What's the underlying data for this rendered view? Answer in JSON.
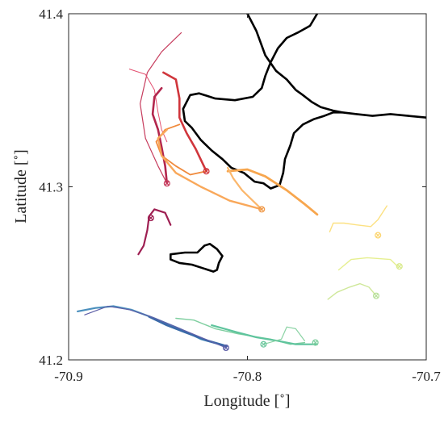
{
  "chart_data": {
    "type": "line",
    "title": "",
    "xlabel": "Longitude [˚]",
    "ylabel": "Latitude [˚]",
    "xlim": [
      -70.9,
      -70.7
    ],
    "ylim": [
      41.2,
      41.4
    ],
    "xticks": [
      -70.9,
      -70.8,
      -70.7
    ],
    "yticks": [
      41.2,
      41.3,
      41.4
    ],
    "xtick_labels": [
      "-70.9",
      "-70.8",
      "-70.7"
    ],
    "ytick_labels": [
      "41.2",
      "41.3",
      "41.4"
    ],
    "grid": false,
    "legend": "none",
    "coastlines": [
      {
        "color": "#000000",
        "points": [
          [
            -70.8,
            41.4
          ],
          [
            -70.795,
            41.39
          ],
          [
            -70.79,
            41.376
          ],
          [
            -70.784,
            41.367
          ],
          [
            -70.778,
            41.362
          ],
          [
            -70.773,
            41.356
          ],
          [
            -70.769,
            41.353
          ],
          [
            -70.764,
            41.349
          ],
          [
            -70.759,
            41.346
          ],
          [
            -70.752,
            41.344
          ],
          [
            -70.747,
            41.343
          ],
          [
            -70.739,
            41.342
          ],
          [
            -70.73,
            41.341
          ],
          [
            -70.72,
            41.342
          ],
          [
            -70.71,
            41.341
          ],
          [
            -70.7,
            41.34
          ]
        ]
      },
      {
        "color": "#000000",
        "points": [
          [
            -70.761,
            41.4
          ],
          [
            -70.765,
            41.393
          ],
          [
            -70.772,
            41.389
          ],
          [
            -70.778,
            41.386
          ],
          [
            -70.783,
            41.38
          ],
          [
            -70.787,
            41.372
          ],
          [
            -70.79,
            41.364
          ],
          [
            -70.792,
            41.357
          ],
          [
            -70.797,
            41.352
          ],
          [
            -70.807,
            41.35
          ],
          [
            -70.818,
            41.351
          ],
          [
            -70.827,
            41.354
          ],
          [
            -70.832,
            41.353
          ],
          [
            -70.836,
            41.345
          ],
          [
            -70.835,
            41.338
          ],
          [
            -70.831,
            41.334
          ],
          [
            -70.826,
            41.327
          ],
          [
            -70.82,
            41.321
          ],
          [
            -70.814,
            41.316
          ],
          [
            -70.809,
            41.311
          ],
          [
            -70.802,
            41.308
          ],
          [
            -70.796,
            41.303
          ],
          [
            -70.791,
            41.302
          ],
          [
            -70.787,
            41.299
          ],
          [
            -70.782,
            41.301
          ],
          [
            -70.78,
            41.308
          ],
          [
            -70.779,
            41.316
          ],
          [
            -70.776,
            41.324
          ],
          [
            -70.774,
            41.331
          ],
          [
            -70.769,
            41.336
          ],
          [
            -70.763,
            41.339
          ],
          [
            -70.757,
            41.341
          ],
          [
            -70.752,
            41.343
          ],
          [
            -70.747,
            41.343
          ]
        ]
      },
      {
        "color": "#000000",
        "points": [
          [
            -70.843,
            41.261
          ],
          [
            -70.835,
            41.262
          ],
          [
            -70.828,
            41.262
          ],
          [
            -70.824,
            41.266
          ],
          [
            -70.821,
            41.267
          ],
          [
            -70.817,
            41.264
          ],
          [
            -70.814,
            41.26
          ],
          [
            -70.816,
            41.256
          ],
          [
            -70.817,
            41.252
          ],
          [
            -70.819,
            41.251
          ],
          [
            -70.825,
            41.253
          ],
          [
            -70.831,
            41.255
          ],
          [
            -70.838,
            41.256
          ],
          [
            -70.843,
            41.258
          ],
          [
            -70.843,
            41.261
          ]
        ]
      }
    ],
    "series": [
      {
        "color": "#c73d5e",
        "width": 1.2,
        "points": [
          [
            -70.837,
            41.389
          ],
          [
            -70.848,
            41.378
          ],
          [
            -70.856,
            41.366
          ],
          [
            -70.86,
            41.348
          ],
          [
            -70.857,
            41.328
          ],
          [
            -70.85,
            41.312
          ],
          [
            -70.845,
            41.302
          ]
        ]
      },
      {
        "color": "#e34f6f",
        "width": 1.0,
        "points": [
          [
            -70.866,
            41.368
          ],
          [
            -70.857,
            41.365
          ],
          [
            -70.852,
            41.356
          ],
          [
            -70.85,
            41.343
          ],
          [
            -70.848,
            41.333
          ],
          [
            -70.845,
            41.326
          ]
        ]
      },
      {
        "color": "#b3264d",
        "width": 2.6,
        "points": [
          [
            -70.848,
            41.357
          ],
          [
            -70.852,
            41.352
          ],
          [
            -70.853,
            41.342
          ],
          [
            -70.85,
            41.333
          ],
          [
            -70.848,
            41.323
          ],
          [
            -70.846,
            41.312
          ],
          [
            -70.845,
            41.302
          ]
        ]
      },
      {
        "color": "#d0363c",
        "width": 2.6,
        "points": [
          [
            -70.847,
            41.366
          ],
          [
            -70.84,
            41.362
          ],
          [
            -70.838,
            41.351
          ],
          [
            -70.838,
            41.34
          ],
          [
            -70.834,
            41.331
          ],
          [
            -70.829,
            41.322
          ],
          [
            -70.823,
            41.309
          ]
        ]
      },
      {
        "color": "#f08a3c",
        "width": 1.8,
        "points": [
          [
            -70.838,
            41.336
          ],
          [
            -70.846,
            41.333
          ],
          [
            -70.851,
            41.326
          ],
          [
            -70.848,
            41.318
          ],
          [
            -70.84,
            41.312
          ],
          [
            -70.832,
            41.307
          ],
          [
            -70.823,
            41.309
          ]
        ]
      },
      {
        "color": "#f9a85a",
        "width": 2.4,
        "points": [
          [
            -70.845,
            41.333
          ],
          [
            -70.85,
            41.328
          ],
          [
            -70.848,
            41.318
          ],
          [
            -70.84,
            41.308
          ],
          [
            -70.826,
            41.3
          ],
          [
            -70.81,
            41.292
          ],
          [
            -70.792,
            41.287
          ]
        ]
      },
      {
        "color": "#f7a64e",
        "width": 2.8,
        "points": [
          [
            -70.811,
            41.309
          ],
          [
            -70.8,
            41.31
          ],
          [
            -70.79,
            41.306
          ],
          [
            -70.778,
            41.298
          ],
          [
            -70.768,
            41.29
          ],
          [
            -70.761,
            41.284
          ]
        ]
      },
      {
        "color": "#fbb76c",
        "width": 2.2,
        "points": [
          [
            -70.811,
            41.311
          ],
          [
            -70.808,
            41.305
          ],
          [
            -70.803,
            41.298
          ],
          [
            -70.797,
            41.292
          ],
          [
            -70.792,
            41.287
          ]
        ]
      },
      {
        "color": "#9e1f52",
        "width": 2.2,
        "points": [
          [
            -70.843,
            41.278
          ],
          [
            -70.846,
            41.285
          ],
          [
            -70.852,
            41.287
          ],
          [
            -70.855,
            41.283
          ],
          [
            -70.856,
            41.275
          ],
          [
            -70.858,
            41.266
          ],
          [
            -70.861,
            41.261
          ]
        ]
      },
      {
        "color": "#fce182",
        "width": 1.4,
        "points": [
          [
            -70.722,
            41.289
          ],
          [
            -70.727,
            41.281
          ],
          [
            -70.731,
            41.277
          ],
          [
            -70.739,
            41.278
          ],
          [
            -70.746,
            41.279
          ],
          [
            -70.752,
            41.279
          ],
          [
            -70.754,
            41.274
          ]
        ]
      },
      {
        "color": "#e6ef90",
        "width": 1.4,
        "points": [
          [
            -70.716,
            41.254
          ],
          [
            -70.72,
            41.258
          ],
          [
            -70.733,
            41.259
          ],
          [
            -70.742,
            41.258
          ],
          [
            -70.749,
            41.252
          ]
        ]
      },
      {
        "color": "#cfe89a",
        "width": 1.4,
        "points": [
          [
            -70.728,
            41.237
          ],
          [
            -70.732,
            41.242
          ],
          [
            -70.737,
            41.244
          ],
          [
            -70.743,
            41.242
          ],
          [
            -70.75,
            41.239
          ],
          [
            -70.755,
            41.235
          ]
        ]
      },
      {
        "color": "#7fcfa0",
        "width": 1.4,
        "points": [
          [
            -70.768,
            41.21
          ],
          [
            -70.776,
            41.209
          ],
          [
            -70.787,
            41.212
          ],
          [
            -70.805,
            41.215
          ],
          [
            -70.818,
            41.218
          ],
          [
            -70.83,
            41.223
          ],
          [
            -70.84,
            41.224
          ]
        ]
      },
      {
        "color": "#5ec49d",
        "width": 2.2,
        "points": [
          [
            -70.761,
            41.209
          ],
          [
            -70.773,
            41.209
          ],
          [
            -70.783,
            41.211
          ],
          [
            -70.795,
            41.213
          ],
          [
            -70.806,
            41.216
          ],
          [
            -70.82,
            41.22
          ]
        ]
      },
      {
        "color": "#8bd3a4",
        "width": 1.2,
        "points": [
          [
            -70.791,
            41.209
          ],
          [
            -70.781,
            41.212
          ],
          [
            -70.778,
            41.219
          ],
          [
            -70.773,
            41.218
          ],
          [
            -70.768,
            41.211
          ]
        ]
      },
      {
        "color": "#4a8fbd",
        "width": 2.2,
        "points": [
          [
            -70.895,
            41.228
          ],
          [
            -70.885,
            41.23
          ],
          [
            -70.875,
            41.231
          ],
          [
            -70.865,
            41.229
          ],
          [
            -70.852,
            41.224
          ],
          [
            -70.838,
            41.218
          ],
          [
            -70.826,
            41.212
          ],
          [
            -70.812,
            41.208
          ]
        ]
      },
      {
        "color": "#3a6aa8",
        "width": 2.6,
        "points": [
          [
            -70.855,
            41.225
          ],
          [
            -70.845,
            41.22
          ],
          [
            -70.835,
            41.216
          ],
          [
            -70.822,
            41.211
          ],
          [
            -70.812,
            41.208
          ]
        ]
      },
      {
        "color": "#5e60a8",
        "width": 1.2,
        "points": [
          [
            -70.891,
            41.226
          ],
          [
            -70.878,
            41.231
          ],
          [
            -70.866,
            41.229
          ],
          [
            -70.854,
            41.225
          ],
          [
            -70.84,
            41.219
          ],
          [
            -70.826,
            41.213
          ],
          [
            -70.812,
            41.207
          ]
        ]
      }
    ],
    "markers": [
      {
        "x": -70.845,
        "y": 41.302,
        "color": "#c73d5e"
      },
      {
        "x": -70.823,
        "y": 41.309,
        "color": "#d0363c"
      },
      {
        "x": -70.792,
        "y": 41.287,
        "color": "#f09a4a"
      },
      {
        "x": -70.854,
        "y": 41.282,
        "color": "#9e1f52"
      },
      {
        "x": -70.727,
        "y": 41.272,
        "color": "#fcd570"
      },
      {
        "x": -70.715,
        "y": 41.254,
        "color": "#d8ea8a"
      },
      {
        "x": -70.728,
        "y": 41.237,
        "color": "#b8e09a"
      },
      {
        "x": -70.791,
        "y": 41.209,
        "color": "#6fc9a0"
      },
      {
        "x": -70.762,
        "y": 41.21,
        "color": "#7fcfa0"
      },
      {
        "x": -70.812,
        "y": 41.207,
        "color": "#5e60a8"
      }
    ]
  }
}
